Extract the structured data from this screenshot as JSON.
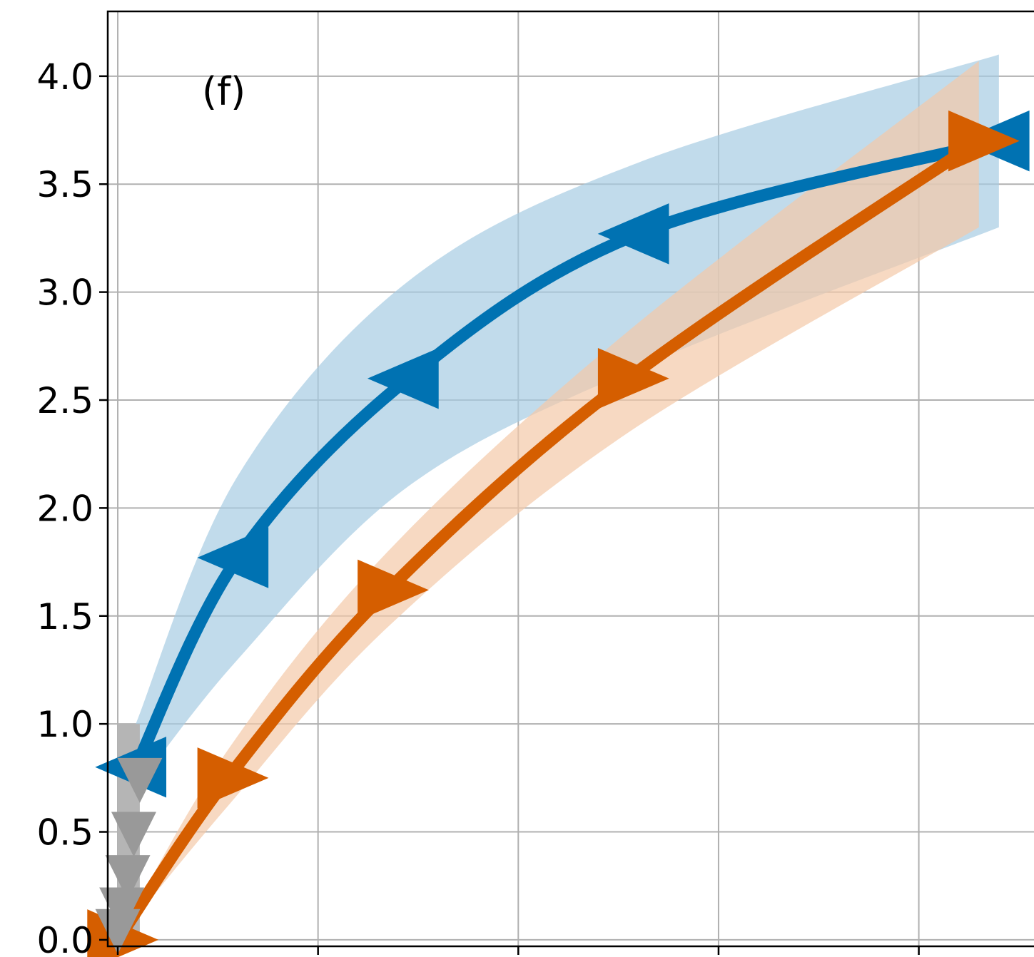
{
  "chart_data": {
    "type": "line",
    "title": "",
    "panel_label": "(f)",
    "xlabel": "",
    "ylabel": "",
    "xlim": [
      -0.05,
      4.65
    ],
    "ylim": [
      -0.03,
      4.3
    ],
    "x_ticks": [
      0,
      1,
      2,
      3,
      4
    ],
    "x_tick_labels": [
      "",
      "",
      "",
      "",
      ""
    ],
    "y_ticks": [
      0.0,
      0.5,
      1.0,
      1.5,
      2.0,
      2.5,
      3.0,
      3.5,
      4.0
    ],
    "y_tick_labels": [
      "0.0",
      "0.5",
      "1.0",
      "1.5",
      "2.0",
      "2.5",
      "3.0",
      "3.5",
      "4.0"
    ],
    "grid": true,
    "colors": {
      "blue": "#0072b2",
      "orange": "#d55e00",
      "blue_band": "#a6cce3",
      "orange_band": "#f4c9a8",
      "gray": "#999999",
      "gray_band": "#b5b5b5"
    },
    "series": [
      {
        "key": "blue",
        "marker": "triangle-left",
        "x": [
          0.09,
          0.6,
          1.45,
          2.6,
          4.4
        ],
        "y": [
          0.8,
          1.77,
          2.6,
          3.27,
          3.7
        ],
        "band_lower": [
          0.7,
          1.3,
          2.1,
          2.65,
          3.3
        ],
        "band_upper": [
          1.0,
          2.15,
          3.05,
          3.6,
          4.1
        ]
      },
      {
        "key": "orange",
        "marker": "triangle-right",
        "x": [
          0.0,
          0.55,
          1.35,
          2.55,
          4.3
        ],
        "y": [
          0.0,
          0.75,
          1.62,
          2.6,
          3.7
        ],
        "band_lower": [
          0.0,
          0.62,
          1.45,
          2.35,
          3.3
        ],
        "band_upper": [
          0.0,
          0.88,
          1.8,
          2.82,
          4.07
        ]
      },
      {
        "key": "gray",
        "marker": "triangle-down",
        "x": [
          0.0,
          0.02,
          0.05,
          0.08,
          0.11
        ],
        "y": [
          0.05,
          0.15,
          0.3,
          0.5,
          0.75
        ],
        "band_lower": [
          0.0,
          0.0,
          0.0,
          0.0,
          0.0
        ],
        "band_upper": [
          1.0,
          1.0,
          1.0,
          1.0,
          1.0
        ]
      }
    ]
  }
}
